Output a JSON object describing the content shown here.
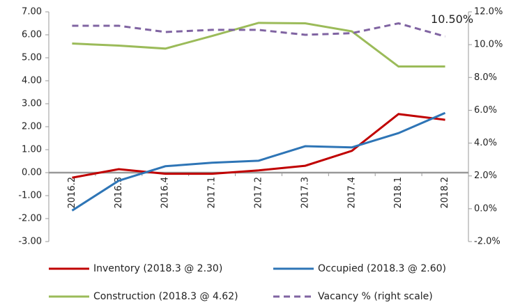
{
  "chart_data": {
    "type": "line",
    "categories": [
      "2016.2",
      "2016.3",
      "2016.4",
      "2017.1",
      "2017.2",
      "2017.3",
      "2017.4",
      "2018.1",
      "2018.2"
    ],
    "series": [
      {
        "name": "Inventory (2018.3 @ 2.30)",
        "color": "#c00000",
        "values": [
          -0.22,
          0.15,
          -0.05,
          -0.05,
          0.1,
          0.3,
          0.95,
          2.55,
          2.3
        ]
      },
      {
        "name": "Occupied (2018.3 @ 2.60)",
        "color": "#2e75b6",
        "values": [
          -1.65,
          -0.35,
          0.28,
          0.43,
          0.52,
          1.15,
          1.1,
          1.72,
          2.6
        ]
      },
      {
        "name": "Construction (2018.3 @ 4.62)",
        "color": "#9bbb59",
        "values": [
          5.62,
          5.53,
          5.4,
          5.95,
          6.52,
          6.5,
          6.15,
          4.62,
          4.62
        ]
      },
      {
        "name": "Vacancy % (right scale)",
        "color": "#8064a2",
        "axis": "y2",
        "line_style": "dashed",
        "values": [
          11.15,
          11.15,
          10.77,
          10.9,
          10.9,
          10.6,
          10.7,
          11.3,
          10.5
        ],
        "value_labels": [
          null,
          null,
          null,
          null,
          null,
          null,
          null,
          null,
          "10.50%"
        ]
      }
    ],
    "ylim": [
      -3,
      7
    ],
    "yticks": [
      {
        "value": -3,
        "label": "-3.00"
      },
      {
        "value": -2,
        "label": "-2.00"
      },
      {
        "value": -1,
        "label": "-1.00"
      },
      {
        "value": 0,
        "label": "0.00"
      },
      {
        "value": 1,
        "label": "1.00"
      },
      {
        "value": 2,
        "label": "2.00"
      },
      {
        "value": 3,
        "label": "3.00"
      },
      {
        "value": 4,
        "label": "4.00"
      },
      {
        "value": 5,
        "label": "5.00"
      },
      {
        "value": 6,
        "label": "6.00"
      },
      {
        "value": 7,
        "label": "7.00"
      }
    ],
    "y2lim": [
      -2,
      12
    ],
    "y2ticks": [
      {
        "value": -2,
        "label": "-2.0%"
      },
      {
        "value": 0,
        "label": "0.0%"
      },
      {
        "value": 2,
        "label": "2.0%"
      },
      {
        "value": 4,
        "label": "4.0%"
      },
      {
        "value": 6,
        "label": "6.0%"
      },
      {
        "value": 8,
        "label": "8.0%"
      },
      {
        "value": 10,
        "label": "10.0%"
      },
      {
        "value": 12,
        "label": "12.0%"
      }
    ],
    "legend": "bottom",
    "grid": false
  }
}
